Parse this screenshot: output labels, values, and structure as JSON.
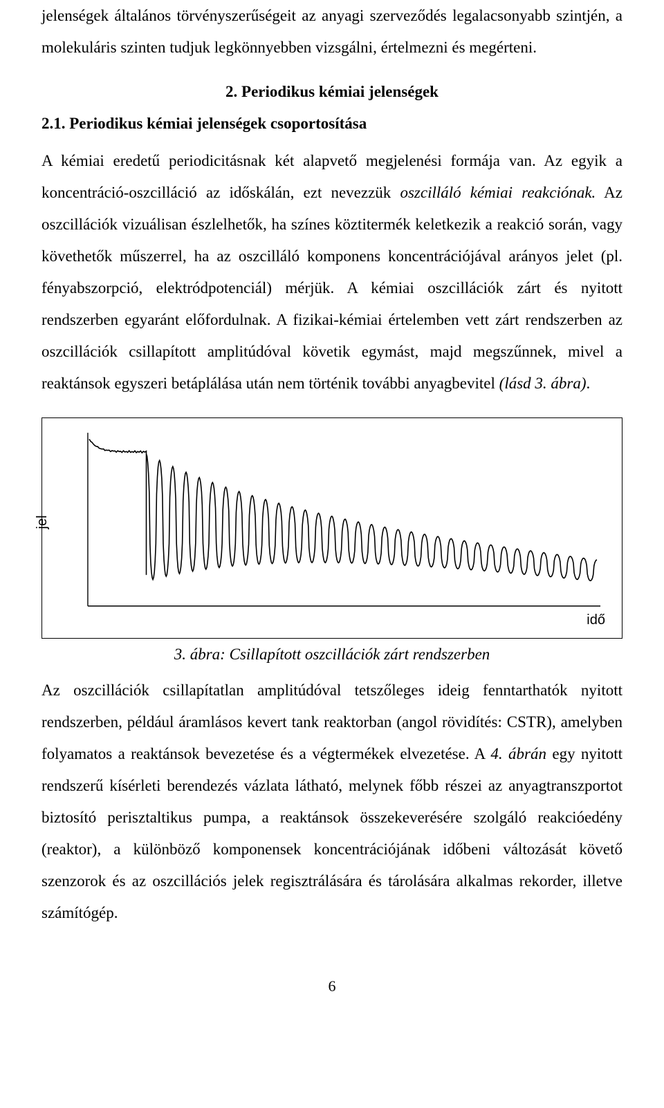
{
  "para1": "jelenségek általános törvényszerűségeit az anyagi szerveződés legalacsonyabb szintjén, a molekuláris szinten tudjuk legkönnyebben vizsgálni, értelmezni és megérteni.",
  "heading2": "2. Periodikus kémiai jelenségek",
  "subheading21": "2.1. Periodikus kémiai jelenségek csoportosítása",
  "para2a": "A kémiai eredetű periodicitásnak két alapvető megjelenési formája van. Az egyik a koncentráció-oszcilláció az időskálán, ezt nevezzük ",
  "para2a_i1": "oszcilláló kémiai reakciónak.",
  "para2a_cont": " Az oszcillációk vizuálisan észlelhetők, ha színes köztitermék keletkezik a reakció során, vagy követhetők műszerrel, ha az oszcilláló komponens koncentrációjával arányos jelet (pl. fényabszorpció, elektródpotenciál) mérjük. A kémiai oszcillációk zárt és nyitott rendszerben egyaránt előfordulnak. A fizikai-kémiai értelemben vett zárt rendszerben az oszcillációk csillapított amplitúdóval követik egymást, majd megszűnnek, mivel a reaktánsok egyszeri betáplálása után nem történik további anyagbevitel ",
  "para2a_i2": "(lásd 3. ábra)",
  "para2a_end": ".",
  "figure": {
    "ylabel": "jel",
    "xlabel": "idő",
    "caption": "3. ábra: Csillapított oszcillációk zárt rendszerben",
    "axis_color": "#000000",
    "line_color": "#000000",
    "background": "#ffffff",
    "line_width": 1.6,
    "axis_width": 1.4
  },
  "para3a": "Az oszcillációk csillapítatlan amplitúdóval tetszőleges ideig fenntarthatók nyitott rendszerben, például áramlásos kevert tank reaktorban (angol rövidítés: CSTR), amelyben folyamatos a reaktánsok bevezetése és a végtermékek elvezetése. A ",
  "para3_i1": "4. ábrán",
  "para3b": " egy nyitott rendszerű kísérleti berendezés vázlata látható, melynek főbb részei az anyagtranszportot biztosító perisztaltikus pumpa, a reaktánsok összekeverésére szolgáló reakcióedény (reaktor), a különböző komponensek koncentrációjának időbeni változását követő szenzorok és az oszcillációs jelek regisztrálására és tárolására alkalmas rekorder, illetve számítógép.",
  "page_number": "6"
}
